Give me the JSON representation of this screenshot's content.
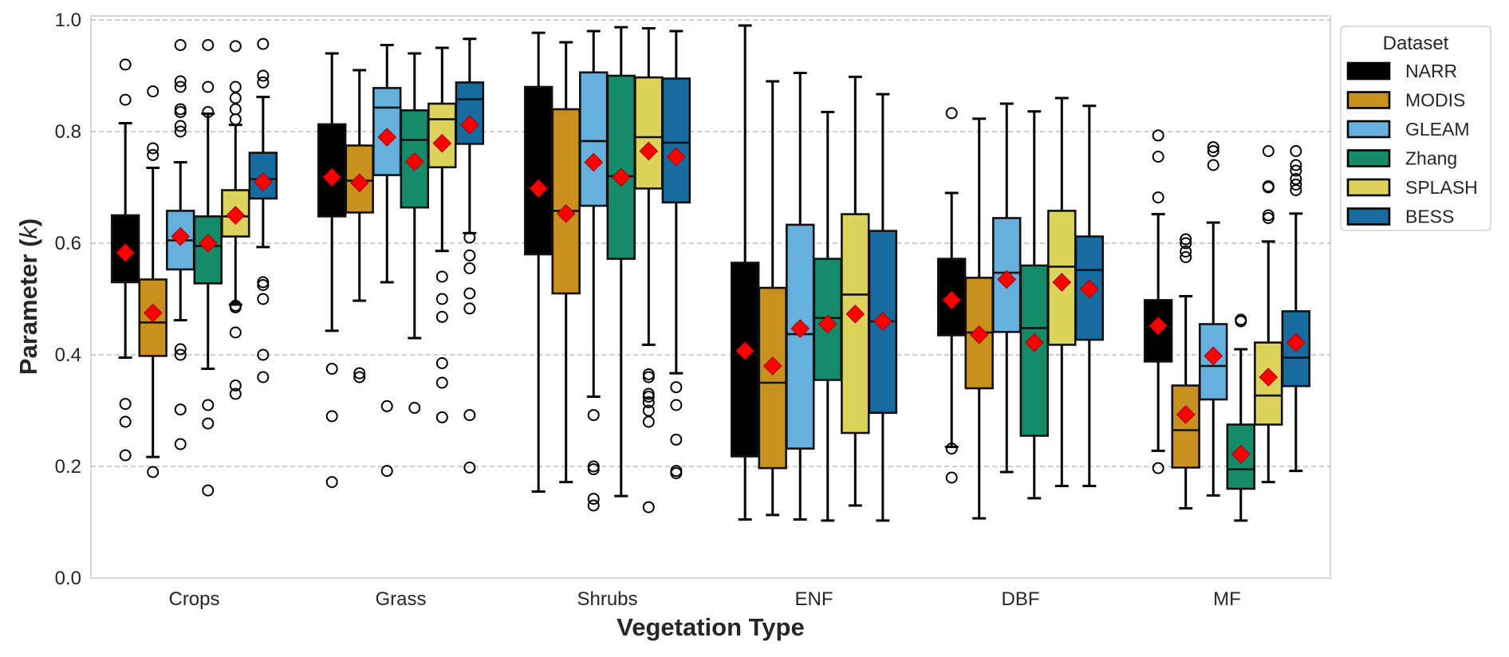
{
  "chart_data": {
    "type": "box",
    "title": "",
    "xlabel": "Vegetation Type",
    "ylabel_prefix": "Parameter (",
    "ylabel_var": "k",
    "ylabel_suffix": ")",
    "ylim": [
      0.0,
      1.0
    ],
    "yticks": [
      0.0,
      0.2,
      0.4,
      0.6,
      0.8,
      1.0
    ],
    "ytick_labels": [
      "0.0",
      "0.2",
      "0.4",
      "0.6",
      "0.8",
      "1.0"
    ],
    "grid": "y-dashed",
    "legend": {
      "title": "Dataset",
      "placement": "outside-top-right"
    },
    "categories": [
      "Crops",
      "Grass",
      "Shrubs",
      "ENF",
      "DBF",
      "MF"
    ],
    "mean_marker": {
      "shape": "diamond",
      "color": "#ff0000"
    },
    "series": [
      {
        "name": "NARR",
        "color": "#000000",
        "boxes": [
          {
            "whislo": 0.395,
            "q1": 0.53,
            "med": 0.585,
            "q3": 0.65,
            "whishi": 0.815,
            "mean": 0.583,
            "fliers": [
              0.92,
              0.857,
              0.312,
              0.28,
              0.22
            ]
          },
          {
            "whislo": 0.443,
            "q1": 0.648,
            "med": 0.72,
            "q3": 0.813,
            "whishi": 0.94,
            "mean": 0.718,
            "fliers": [
              0.375,
              0.29,
              0.172
            ]
          },
          {
            "whislo": 0.155,
            "q1": 0.58,
            "med": 0.7,
            "q3": 0.88,
            "whishi": 0.977,
            "mean": 0.698,
            "fliers": []
          },
          {
            "whislo": 0.105,
            "q1": 0.218,
            "med": 0.4,
            "q3": 0.565,
            "whishi": 0.99,
            "mean": 0.407,
            "fliers": []
          },
          {
            "whislo": 0.235,
            "q1": 0.435,
            "med": 0.5,
            "q3": 0.572,
            "whishi": 0.69,
            "mean": 0.498,
            "fliers": [
              0.833,
              0.232,
              0.18
            ]
          },
          {
            "whislo": 0.228,
            "q1": 0.388,
            "med": 0.45,
            "q3": 0.498,
            "whishi": 0.652,
            "mean": 0.452,
            "fliers": [
              0.793,
              0.755,
              0.682,
              0.197
            ]
          }
        ]
      },
      {
        "name": "MODIS",
        "color": "#c8911d",
        "boxes": [
          {
            "whislo": 0.217,
            "q1": 0.398,
            "med": 0.458,
            "q3": 0.535,
            "whishi": 0.735,
            "mean": 0.475,
            "fliers": [
              0.872,
              0.77,
              0.758,
              0.19
            ]
          },
          {
            "whislo": 0.497,
            "q1": 0.655,
            "med": 0.712,
            "q3": 0.775,
            "whishi": 0.91,
            "mean": 0.708,
            "fliers": [
              0.367,
              0.36
            ]
          },
          {
            "whislo": 0.172,
            "q1": 0.51,
            "med": 0.658,
            "q3": 0.84,
            "whishi": 0.96,
            "mean": 0.653,
            "fliers": []
          },
          {
            "whislo": 0.113,
            "q1": 0.197,
            "med": 0.35,
            "q3": 0.52,
            "whishi": 0.89,
            "mean": 0.38,
            "fliers": []
          },
          {
            "whislo": 0.107,
            "q1": 0.34,
            "med": 0.44,
            "q3": 0.538,
            "whishi": 0.823,
            "mean": 0.436,
            "fliers": []
          },
          {
            "whislo": 0.125,
            "q1": 0.198,
            "med": 0.265,
            "q3": 0.345,
            "whishi": 0.505,
            "mean": 0.293,
            "fliers": [
              0.607,
              0.6,
              0.585,
              0.575
            ]
          }
        ]
      },
      {
        "name": "GLEAM",
        "color": "#65b0dc",
        "boxes": [
          {
            "whislo": 0.462,
            "q1": 0.553,
            "med": 0.605,
            "q3": 0.658,
            "whishi": 0.745,
            "mean": 0.612,
            "fliers": [
              0.955,
              0.89,
              0.88,
              0.84,
              0.835,
              0.81,
              0.8,
              0.41,
              0.4,
              0.302,
              0.24
            ]
          },
          {
            "whislo": 0.53,
            "q1": 0.722,
            "med": 0.843,
            "q3": 0.878,
            "whishi": 0.955,
            "mean": 0.79,
            "fliers": [
              0.308,
              0.192
            ]
          },
          {
            "whislo": 0.325,
            "q1": 0.667,
            "med": 0.783,
            "q3": 0.906,
            "whishi": 0.98,
            "mean": 0.745,
            "fliers": [
              0.292,
              0.2,
              0.195,
              0.142,
              0.13
            ]
          },
          {
            "whislo": 0.105,
            "q1": 0.232,
            "med": 0.437,
            "q3": 0.633,
            "whishi": 0.905,
            "mean": 0.447,
            "fliers": []
          },
          {
            "whislo": 0.19,
            "q1": 0.441,
            "med": 0.547,
            "q3": 0.645,
            "whishi": 0.85,
            "mean": 0.535,
            "fliers": []
          },
          {
            "whislo": 0.148,
            "q1": 0.32,
            "med": 0.38,
            "q3": 0.455,
            "whishi": 0.637,
            "mean": 0.398,
            "fliers": [
              0.772,
              0.765,
              0.74
            ]
          }
        ]
      },
      {
        "name": "Zhang",
        "color": "#168b6a",
        "boxes": [
          {
            "whislo": 0.375,
            "q1": 0.528,
            "med": 0.595,
            "q3": 0.648,
            "whishi": 0.832,
            "mean": 0.6,
            "fliers": [
              0.955,
              0.88,
              0.835,
              0.31,
              0.277,
              0.157
            ]
          },
          {
            "whislo": 0.43,
            "q1": 0.664,
            "med": 0.785,
            "q3": 0.838,
            "whishi": 0.94,
            "mean": 0.746,
            "fliers": [
              0.305
            ]
          },
          {
            "whislo": 0.147,
            "q1": 0.572,
            "med": 0.72,
            "q3": 0.9,
            "whishi": 0.987,
            "mean": 0.718,
            "fliers": []
          },
          {
            "whislo": 0.103,
            "q1": 0.355,
            "med": 0.466,
            "q3": 0.572,
            "whishi": 0.835,
            "mean": 0.455,
            "fliers": []
          },
          {
            "whislo": 0.143,
            "q1": 0.255,
            "med": 0.448,
            "q3": 0.56,
            "whishi": 0.836,
            "mean": 0.422,
            "fliers": []
          },
          {
            "whislo": 0.103,
            "q1": 0.16,
            "med": 0.195,
            "q3": 0.275,
            "whishi": 0.41,
            "mean": 0.222,
            "fliers": [
              0.463,
              0.46
            ]
          }
        ]
      },
      {
        "name": "SPLASH",
        "color": "#dcd35a",
        "boxes": [
          {
            "whislo": 0.49,
            "q1": 0.612,
            "med": 0.648,
            "q3": 0.695,
            "whishi": 0.812,
            "mean": 0.65,
            "fliers": [
              0.953,
              0.88,
              0.86,
              0.84,
              0.822,
              0.488,
              0.485,
              0.44,
              0.345,
              0.33
            ]
          },
          {
            "whislo": 0.586,
            "q1": 0.736,
            "med": 0.822,
            "q3": 0.85,
            "whishi": 0.95,
            "mean": 0.779,
            "fliers": [
              0.54,
              0.5,
              0.468,
              0.385,
              0.35,
              0.288
            ]
          },
          {
            "whislo": 0.418,
            "q1": 0.698,
            "med": 0.79,
            "q3": 0.897,
            "whishi": 0.985,
            "mean": 0.765,
            "fliers": [
              0.365,
              0.36,
              0.33,
              0.325,
              0.315,
              0.3,
              0.28,
              0.127
            ]
          },
          {
            "whislo": 0.13,
            "q1": 0.26,
            "med": 0.508,
            "q3": 0.652,
            "whishi": 0.898,
            "mean": 0.473,
            "fliers": []
          },
          {
            "whislo": 0.165,
            "q1": 0.418,
            "med": 0.558,
            "q3": 0.658,
            "whishi": 0.86,
            "mean": 0.53,
            "fliers": []
          },
          {
            "whislo": 0.172,
            "q1": 0.275,
            "med": 0.327,
            "q3": 0.422,
            "whishi": 0.603,
            "mean": 0.36,
            "fliers": [
              0.765,
              0.702,
              0.7,
              0.65,
              0.645
            ]
          }
        ]
      },
      {
        "name": "BESS",
        "color": "#176b9e",
        "boxes": [
          {
            "whislo": 0.593,
            "q1": 0.68,
            "med": 0.715,
            "q3": 0.762,
            "whishi": 0.862,
            "mean": 0.71,
            "fliers": [
              0.957,
              0.9,
              0.888,
              0.53,
              0.525,
              0.5,
              0.4,
              0.36
            ]
          },
          {
            "whislo": 0.618,
            "q1": 0.778,
            "med": 0.858,
            "q3": 0.888,
            "whishi": 0.966,
            "mean": 0.812,
            "fliers": [
              0.61,
              0.578,
              0.555,
              0.51,
              0.483,
              0.292,
              0.198
            ]
          },
          {
            "whislo": 0.367,
            "q1": 0.673,
            "med": 0.78,
            "q3": 0.895,
            "whishi": 0.98,
            "mean": 0.755,
            "fliers": [
              0.342,
              0.31,
              0.248,
              0.192,
              0.188
            ]
          },
          {
            "whislo": 0.103,
            "q1": 0.296,
            "med": 0.46,
            "q3": 0.622,
            "whishi": 0.867,
            "mean": 0.46,
            "fliers": []
          },
          {
            "whislo": 0.165,
            "q1": 0.427,
            "med": 0.552,
            "q3": 0.612,
            "whishi": 0.846,
            "mean": 0.518,
            "fliers": []
          },
          {
            "whislo": 0.192,
            "q1": 0.344,
            "med": 0.395,
            "q3": 0.478,
            "whishi": 0.653,
            "mean": 0.422,
            "fliers": [
              0.765,
              0.74,
              0.73,
              0.715,
              0.705,
              0.695
            ]
          }
        ]
      }
    ]
  }
}
